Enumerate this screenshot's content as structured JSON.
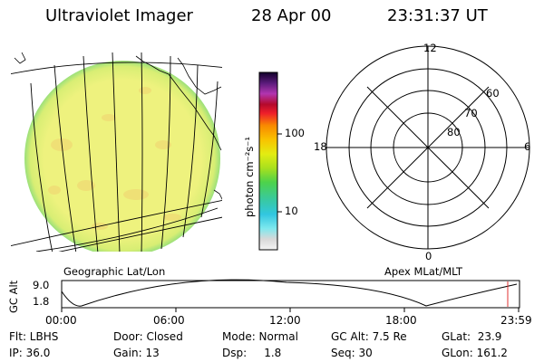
{
  "header": {
    "instrument": "Ultraviolet Imager",
    "date": "28 Apr 00",
    "time": "23:31:37 UT"
  },
  "colorbar": {
    "unit_label": "photon cm⁻²s⁻¹",
    "ticks": [
      "100",
      "10"
    ]
  },
  "map_label": "Geographic Lat/Lon",
  "polar": {
    "label": "Apex MLat/MLT",
    "mlt": {
      "top": "12",
      "left": "18",
      "right": "6",
      "bottom": "0"
    },
    "lat_labels": [
      "60",
      "70",
      "80"
    ]
  },
  "altitude_plot": {
    "ylabel": "GC Alt",
    "y_ticks": [
      "9.0",
      "1.8"
    ],
    "x_ticks": [
      "00:00",
      "06:00",
      "12:00",
      "18:00",
      "23:59"
    ]
  },
  "info": {
    "row1": {
      "flt": "Flt: LBHS",
      "door": "Door: Closed",
      "mode": "Mode: Normal",
      "gcalt": "GC Alt: 7.5 Re",
      "glat": "GLat:  23.9"
    },
    "row2": {
      "ip": "IP: 36.0",
      "gain": "Gain: 13",
      "dsp": "Dsp:     1.8",
      "seq": "Seq: 30",
      "glon": "GLon: 161.2"
    }
  },
  "colors": {
    "disk_fill": "#eef27e",
    "disk_limb": "#9be07a",
    "marker": "#e03030"
  }
}
